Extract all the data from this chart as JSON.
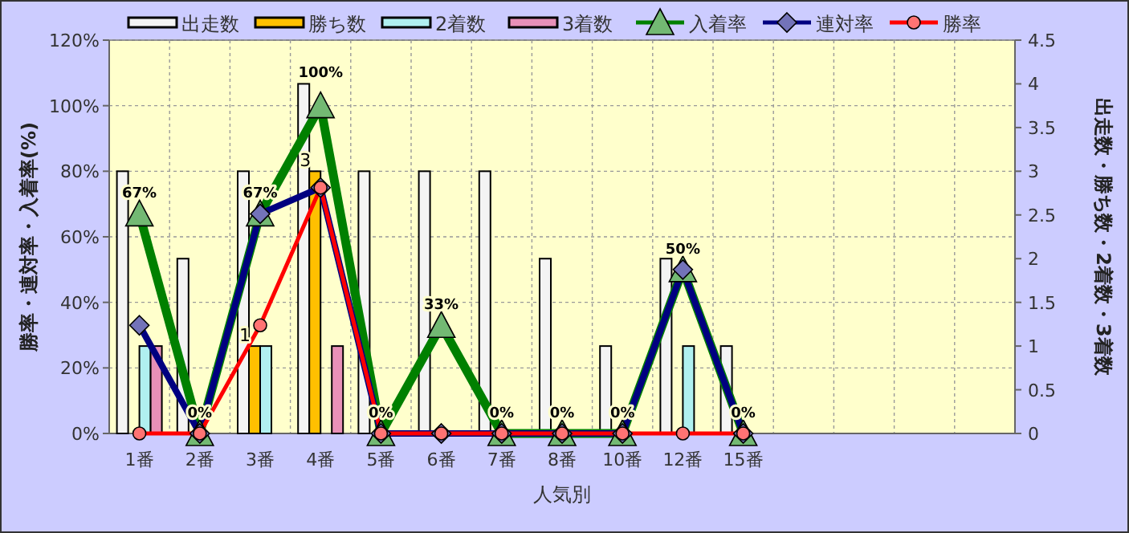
{
  "chart_data": {
    "type": "bar",
    "xlabel": "人気別",
    "ylabel": "勝率・連対率・入着率(%)",
    "y2label": "出走数・勝ち数・2着数・3着数",
    "categories": [
      "1番",
      "2番",
      "3番",
      "4番",
      "5番",
      "6番",
      "7番",
      "8番",
      "10番",
      "12番",
      "15番",
      null,
      null,
      null,
      null
    ],
    "series": [
      {
        "name": "出走数",
        "axis": "y2",
        "color": "#f4f4f4",
        "values": [
          3,
          2,
          3,
          4,
          3,
          3,
          3,
          2,
          1,
          2,
          1,
          null,
          null,
          null,
          null
        ]
      },
      {
        "name": "勝ち数",
        "axis": "y2",
        "color": "#ffc000",
        "values": [
          0,
          0,
          1,
          3,
          0,
          0,
          0,
          0,
          0,
          0,
          0,
          null,
          null,
          null,
          null
        ],
        "value_labels": [
          null,
          null,
          "1",
          "3",
          null,
          null,
          null,
          null,
          null,
          null,
          null,
          null,
          null,
          null,
          null
        ]
      },
      {
        "name": "2着数",
        "axis": "y2",
        "color": "#b0f0f0",
        "values": [
          1,
          0,
          1,
          0,
          0,
          0,
          0,
          0,
          0,
          1,
          0,
          null,
          null,
          null,
          null
        ]
      },
      {
        "name": "3着数",
        "axis": "y2",
        "color": "#e890b8",
        "values": [
          1,
          0,
          0,
          1,
          0,
          0,
          0,
          0,
          0,
          0,
          0,
          null,
          null,
          null,
          null
        ]
      },
      {
        "name": "入着率",
        "type": "line",
        "color": "#008000",
        "marker": "triangle",
        "values": [
          67,
          0,
          67,
          100,
          0,
          33,
          0,
          0,
          0,
          50,
          0,
          null,
          null,
          null,
          null
        ],
        "value_labels": [
          "67%",
          "0%",
          "67%",
          "100%",
          "0%",
          "33%",
          "0%",
          "0%",
          "0%",
          "50%",
          "0%",
          null,
          null,
          null,
          null
        ]
      },
      {
        "name": "連対率",
        "type": "line",
        "color": "#000080",
        "marker": "diamond",
        "values": [
          33,
          0,
          67,
          75,
          0,
          0,
          0,
          0,
          0,
          50,
          0,
          null,
          null,
          null,
          null
        ]
      },
      {
        "name": "勝率",
        "type": "line",
        "color": "#ff0000",
        "marker": "circle",
        "values": [
          0,
          0,
          33,
          75,
          0,
          0,
          0,
          0,
          0,
          0,
          0,
          null,
          null,
          null,
          null
        ]
      }
    ],
    "ylim": [
      0,
      120
    ],
    "yticks": [
      {
        "value": 0,
        "label": "0%"
      },
      {
        "value": 20,
        "label": "20%"
      },
      {
        "value": 40,
        "label": "40%"
      },
      {
        "value": 60,
        "label": "60%"
      },
      {
        "value": 80,
        "label": "80%"
      },
      {
        "value": 100,
        "label": "100%"
      },
      {
        "value": 120,
        "label": "120%"
      }
    ],
    "y2lim": [
      0,
      4.5
    ],
    "y2ticks": [
      0,
      0.5,
      1,
      1.5,
      2,
      2.5,
      3,
      3.5,
      4,
      4.5
    ],
    "grid": true,
    "legend": "top"
  }
}
